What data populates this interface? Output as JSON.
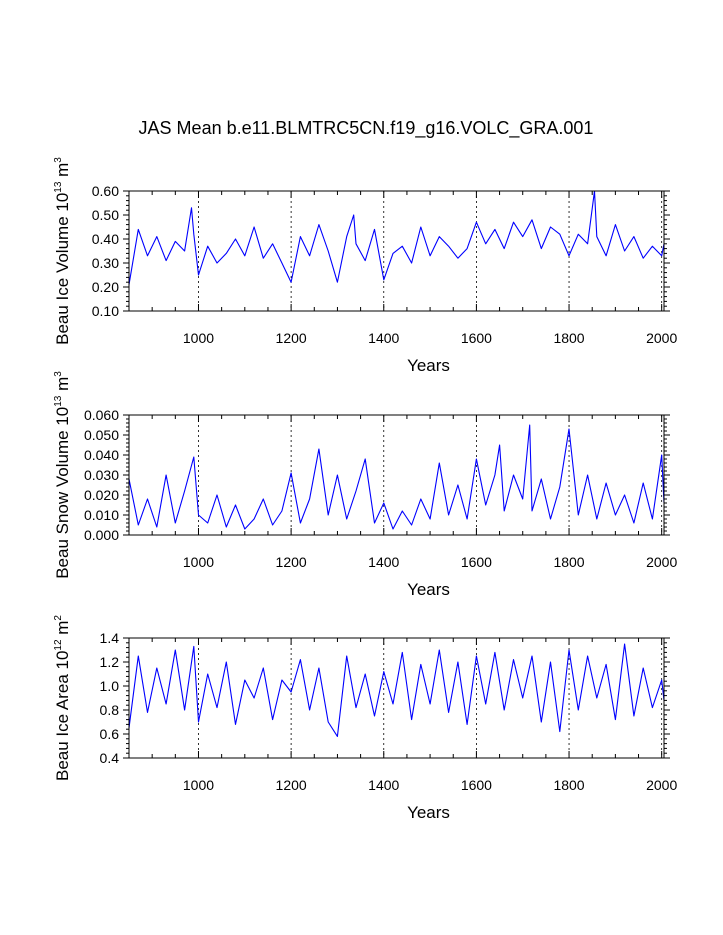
{
  "title": "JAS Mean b.e11.BLMTRC5CN.f19_g16.VOLC_GRA.001",
  "series_color": "#0000ff",
  "chart_data": [
    {
      "type": "line",
      "name": "ice-volume",
      "ylabel_text": "Beau Ice Volume 10",
      "ylabel_exp": "13",
      "ylabel_unit": " m",
      "ylabel_unit_exp": "3",
      "xlabel": "Years",
      "xlim": [
        850,
        2005
      ],
      "ylim": [
        0.1,
        0.6
      ],
      "x_ticks": [
        1000,
        1200,
        1400,
        1600,
        1800,
        2000
      ],
      "y_ticks": [
        0.1,
        0.2,
        0.3,
        0.4,
        0.5,
        0.6
      ],
      "y_tick_labels": [
        "0.10",
        "0.20",
        "0.30",
        "0.40",
        "0.50",
        "0.60"
      ],
      "grid_x": [
        1000,
        1200,
        1400,
        1600,
        1800,
        2000
      ],
      "x": [
        850,
        870,
        890,
        910,
        930,
        950,
        970,
        985,
        990,
        1000,
        1020,
        1040,
        1060,
        1080,
        1100,
        1120,
        1140,
        1160,
        1180,
        1200,
        1220,
        1240,
        1260,
        1280,
        1300,
        1320,
        1335,
        1340,
        1360,
        1380,
        1400,
        1420,
        1440,
        1460,
        1480,
        1500,
        1520,
        1540,
        1560,
        1580,
        1600,
        1620,
        1640,
        1660,
        1680,
        1700,
        1720,
        1740,
        1760,
        1780,
        1800,
        1820,
        1840,
        1855,
        1860,
        1880,
        1900,
        1920,
        1940,
        1960,
        1980,
        2000,
        2005
      ],
      "values": [
        0.21,
        0.44,
        0.33,
        0.41,
        0.31,
        0.39,
        0.35,
        0.53,
        0.42,
        0.25,
        0.37,
        0.3,
        0.34,
        0.4,
        0.33,
        0.45,
        0.32,
        0.38,
        0.3,
        0.22,
        0.41,
        0.33,
        0.46,
        0.35,
        0.22,
        0.41,
        0.5,
        0.38,
        0.31,
        0.44,
        0.23,
        0.34,
        0.37,
        0.3,
        0.45,
        0.33,
        0.41,
        0.37,
        0.32,
        0.36,
        0.47,
        0.38,
        0.44,
        0.36,
        0.47,
        0.41,
        0.48,
        0.36,
        0.45,
        0.42,
        0.33,
        0.42,
        0.38,
        0.6,
        0.41,
        0.33,
        0.46,
        0.35,
        0.41,
        0.32,
        0.37,
        0.33,
        0.38
      ]
    },
    {
      "type": "line",
      "name": "snow-volume",
      "ylabel_text": "Beau Snow Volume 10",
      "ylabel_exp": "13",
      "ylabel_unit": " m",
      "ylabel_unit_exp": "3",
      "xlabel": "Years",
      "xlim": [
        850,
        2005
      ],
      "ylim": [
        0.0,
        0.06
      ],
      "x_ticks": [
        1000,
        1200,
        1400,
        1600,
        1800,
        2000
      ],
      "y_ticks": [
        0.0,
        0.01,
        0.02,
        0.03,
        0.04,
        0.05,
        0.06
      ],
      "y_tick_labels": [
        "0.000",
        "0.010",
        "0.020",
        "0.030",
        "0.040",
        "0.050",
        "0.060"
      ],
      "grid_x": [
        1000,
        1200,
        1400,
        1600,
        1800,
        2000
      ],
      "x": [
        850,
        870,
        890,
        910,
        930,
        950,
        970,
        990,
        1000,
        1020,
        1040,
        1060,
        1080,
        1100,
        1120,
        1140,
        1160,
        1180,
        1200,
        1220,
        1240,
        1260,
        1280,
        1300,
        1320,
        1340,
        1360,
        1380,
        1400,
        1420,
        1440,
        1460,
        1480,
        1500,
        1520,
        1540,
        1560,
        1580,
        1600,
        1620,
        1640,
        1650,
        1660,
        1680,
        1700,
        1715,
        1720,
        1740,
        1760,
        1780,
        1800,
        1820,
        1840,
        1860,
        1880,
        1900,
        1920,
        1940,
        1960,
        1980,
        2000,
        2005
      ],
      "values": [
        0.028,
        0.005,
        0.018,
        0.004,
        0.03,
        0.006,
        0.022,
        0.039,
        0.01,
        0.006,
        0.02,
        0.004,
        0.015,
        0.003,
        0.008,
        0.018,
        0.005,
        0.012,
        0.031,
        0.006,
        0.018,
        0.043,
        0.01,
        0.03,
        0.008,
        0.022,
        0.038,
        0.006,
        0.016,
        0.003,
        0.012,
        0.005,
        0.018,
        0.008,
        0.036,
        0.01,
        0.025,
        0.008,
        0.038,
        0.015,
        0.03,
        0.045,
        0.012,
        0.03,
        0.018,
        0.055,
        0.012,
        0.028,
        0.008,
        0.024,
        0.053,
        0.01,
        0.03,
        0.008,
        0.026,
        0.01,
        0.02,
        0.006,
        0.026,
        0.008,
        0.04,
        0.016
      ]
    },
    {
      "type": "line",
      "name": "ice-area",
      "ylabel_text": "Beau Ice Area 10",
      "ylabel_exp": "12",
      "ylabel_unit": " m",
      "ylabel_unit_exp": "2",
      "xlabel": "Years",
      "xlim": [
        850,
        2005
      ],
      "ylim": [
        0.4,
        1.4
      ],
      "x_ticks": [
        1000,
        1200,
        1400,
        1600,
        1800,
        2000
      ],
      "y_ticks": [
        0.4,
        0.6,
        0.8,
        1.0,
        1.2,
        1.4
      ],
      "y_tick_labels": [
        "0.4",
        "0.6",
        "0.8",
        "1.0",
        "1.2",
        "1.4"
      ],
      "grid_x": [
        1000,
        1200,
        1400,
        1600,
        1800,
        2000
      ],
      "x": [
        850,
        870,
        890,
        910,
        930,
        950,
        970,
        990,
        1000,
        1020,
        1040,
        1060,
        1080,
        1100,
        1120,
        1140,
        1160,
        1180,
        1200,
        1220,
        1240,
        1260,
        1280,
        1300,
        1320,
        1340,
        1360,
        1380,
        1400,
        1420,
        1440,
        1460,
        1480,
        1500,
        1520,
        1540,
        1560,
        1580,
        1600,
        1620,
        1640,
        1660,
        1680,
        1700,
        1720,
        1740,
        1760,
        1780,
        1800,
        1820,
        1840,
        1860,
        1880,
        1900,
        1920,
        1940,
        1960,
        1980,
        2000,
        2005
      ],
      "values": [
        0.65,
        1.25,
        0.78,
        1.15,
        0.85,
        1.3,
        0.8,
        1.33,
        0.7,
        1.1,
        0.82,
        1.2,
        0.68,
        1.05,
        0.9,
        1.15,
        0.72,
        1.05,
        0.95,
        1.22,
        0.8,
        1.15,
        0.7,
        0.58,
        1.25,
        0.82,
        1.1,
        0.75,
        1.12,
        0.85,
        1.28,
        0.72,
        1.18,
        0.85,
        1.3,
        0.78,
        1.2,
        0.68,
        1.25,
        0.85,
        1.28,
        0.8,
        1.22,
        0.9,
        1.25,
        0.7,
        1.2,
        0.62,
        1.3,
        0.8,
        1.25,
        0.9,
        1.18,
        0.72,
        1.35,
        0.75,
        1.15,
        0.82,
        1.05,
        0.88
      ]
    }
  ]
}
